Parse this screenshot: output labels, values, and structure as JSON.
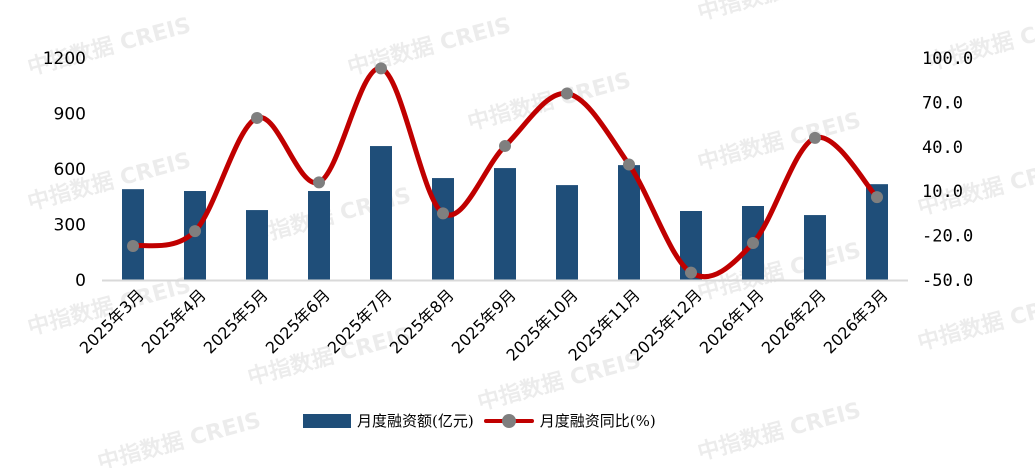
{
  "chart_data": {
    "type": "bar+line",
    "title": "",
    "categories": [
      "2025年3月",
      "2025年4月",
      "2025年5月",
      "2025年6月",
      "2025年7月",
      "2025年8月",
      "2025年9月",
      "2025年10月",
      "2025年11月",
      "2025年12月",
      "2026年1月",
      "2026年2月",
      "2026年3月"
    ],
    "series": [
      {
        "name": "月度融资额(亿元)",
        "type": "bar",
        "axis": "left",
        "color": "#1F4E79",
        "values": [
          491,
          481,
          378,
          481,
          724,
          551,
          605,
          513,
          621,
          373,
          400,
          351,
          518
        ]
      },
      {
        "name": "月度融资同比(%)",
        "type": "line",
        "axis": "right",
        "color": "#C00000",
        "marker_color": "#7F7F7F",
        "values": [
          -27.0,
          -17.0,
          59.5,
          16.0,
          93.0,
          -5.0,
          40.5,
          76.0,
          28.0,
          -45.0,
          -25.0,
          46.0,
          6.0
        ]
      }
    ],
    "left_axis": {
      "ylim": [
        0,
        1200
      ],
      "ticks": [
        "0",
        "300",
        "600",
        "900",
        "1200"
      ]
    },
    "right_axis": {
      "ylim": [
        -50,
        100
      ],
      "ticks": [
        "-50.0",
        "-20.0",
        "10.0",
        "40.0",
        "70.0",
        "100.0"
      ]
    },
    "xlabel": "",
    "ylabel": "",
    "grid": false,
    "legend_position": "bottom"
  },
  "legend": {
    "bar_label": "月度融资额(亿元)",
    "line_label": "月度融资同比(%)"
  },
  "watermark": "中指数据 CREIS"
}
